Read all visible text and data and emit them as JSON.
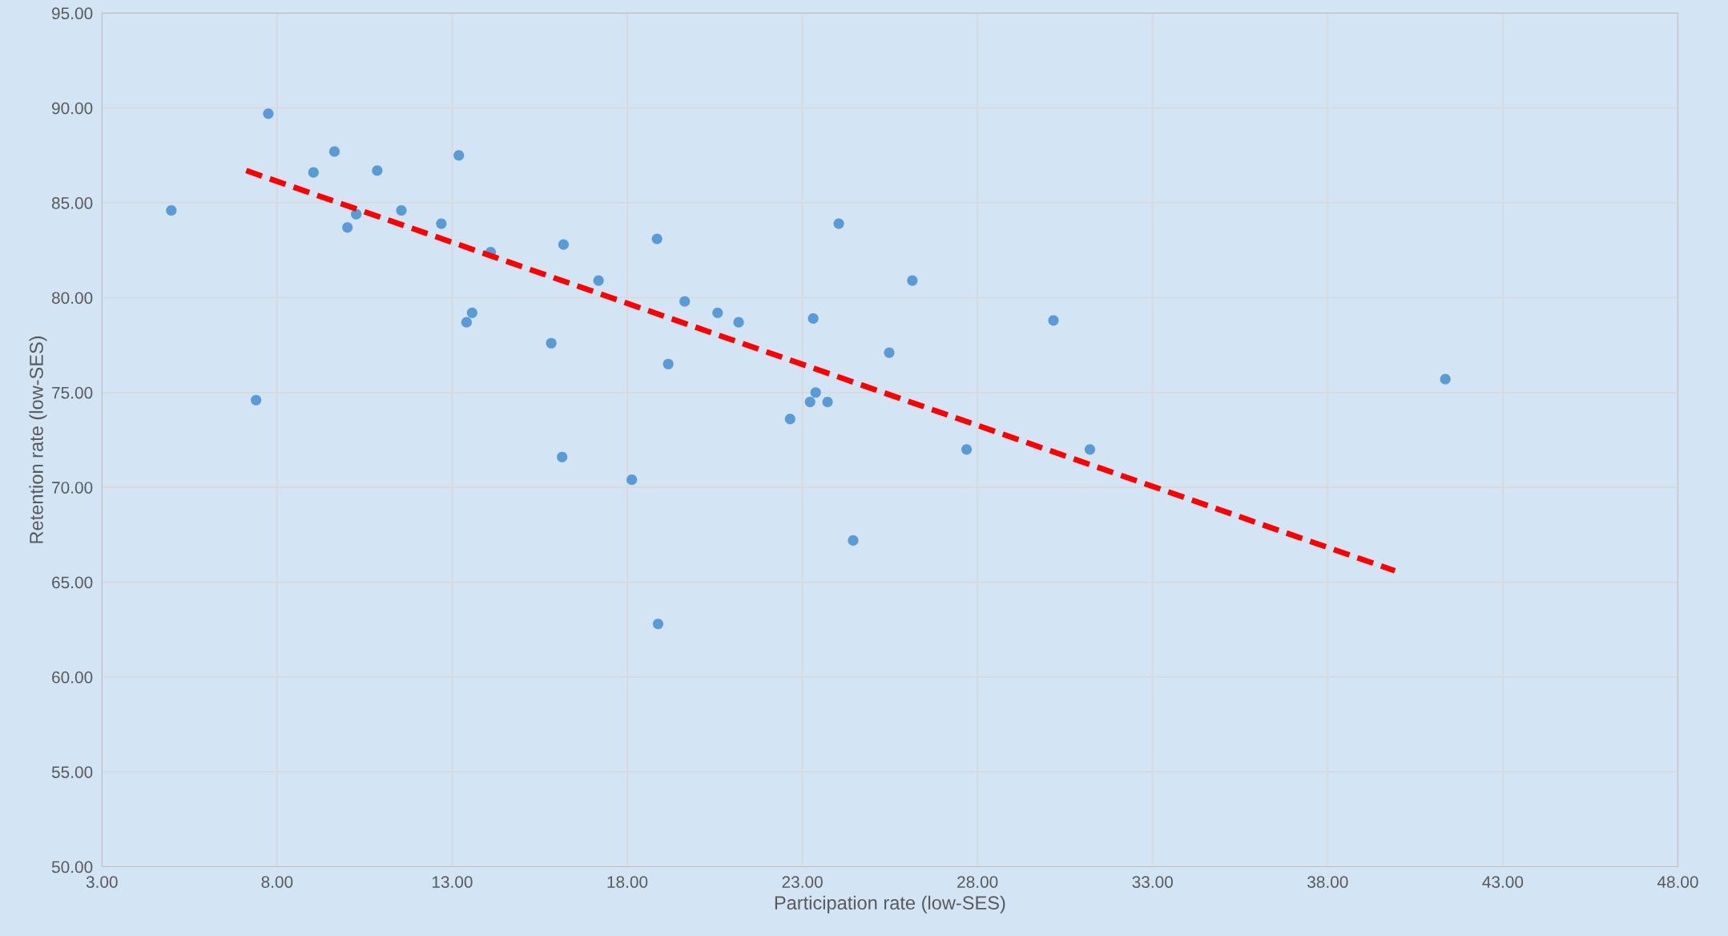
{
  "chart_data": {
    "type": "scatter",
    "xlabel": "Participation rate (low-SES)",
    "ylabel": "Retention rate (low-SES)",
    "xlim": [
      3,
      48
    ],
    "ylim": [
      50,
      95
    ],
    "xticks": [
      {
        "value": 3,
        "label": "3.00"
      },
      {
        "value": 8,
        "label": "8.00"
      },
      {
        "value": 13,
        "label": "13.00"
      },
      {
        "value": 18,
        "label": "18.00"
      },
      {
        "value": 23,
        "label": "23.00"
      },
      {
        "value": 28,
        "label": "28.00"
      },
      {
        "value": 33,
        "label": "33.00"
      },
      {
        "value": 38,
        "label": "38.00"
      },
      {
        "value": 43,
        "label": "43.00"
      },
      {
        "value": 48,
        "label": "48.00"
      }
    ],
    "yticks": [
      {
        "value": 50,
        "label": "50.00"
      },
      {
        "value": 55,
        "label": "55.00"
      },
      {
        "value": 60,
        "label": "60.00"
      },
      {
        "value": 65,
        "label": "65.00"
      },
      {
        "value": 70,
        "label": "70.00"
      },
      {
        "value": 75,
        "label": "75.00"
      },
      {
        "value": 80,
        "label": "80.00"
      },
      {
        "value": 85,
        "label": "85.00"
      },
      {
        "value": 90,
        "label": "90.00"
      },
      {
        "value": 95,
        "label": "95.00"
      }
    ],
    "grid": true,
    "legend": false,
    "series": [
      {
        "color": "#5b9bd5",
        "marker": "circle",
        "x": [
          4.98,
          7.75,
          7.4,
          9.04,
          9.64,
          10.01,
          10.26,
          10.86,
          11.55,
          12.69,
          13.19,
          13.41,
          13.57,
          14.1,
          15.83,
          16.18,
          16.14,
          17.18,
          18.13,
          18.85,
          18.88,
          19.17,
          19.64,
          20.58,
          21.18,
          22.65,
          23.22,
          23.31,
          23.38,
          23.72,
          24.04,
          24.45,
          25.48,
          26.14,
          27.69,
          30.17,
          31.21,
          41.36
        ],
        "values": [
          84.6,
          89.7,
          74.6,
          86.6,
          87.7,
          83.7,
          84.4,
          86.7,
          84.6,
          83.9,
          87.5,
          78.7,
          79.2,
          82.4,
          77.6,
          82.8,
          71.6,
          80.9,
          70.4,
          83.1,
          62.8,
          76.5,
          79.8,
          79.2,
          78.7,
          73.6,
          74.5,
          78.9,
          75.0,
          74.5,
          83.9,
          67.2,
          77.1,
          80.9,
          72.0,
          78.8,
          72.0,
          75.7
        ]
      },
      {
        "type": "line",
        "color": "#ff0000",
        "line_style": "dashed",
        "marker": "none",
        "x": [
          7.12,
          39.92
        ],
        "values": [
          86.7,
          65.6
        ]
      }
    ]
  }
}
